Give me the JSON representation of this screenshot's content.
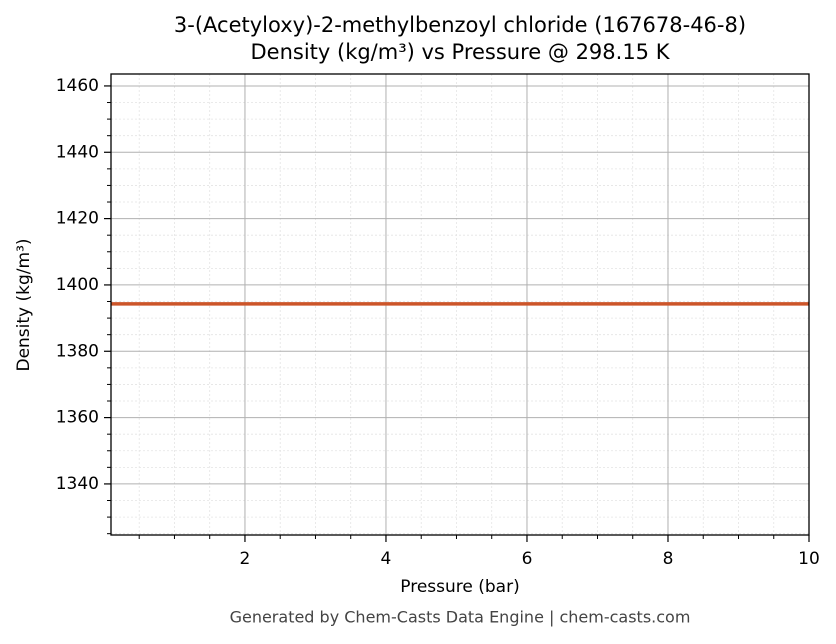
{
  "chart_data": {
    "type": "line",
    "title": "3-(Acetyloxy)-2-methylbenzoyl chloride (167678-46-8)",
    "subtitle": "Density (kg/m³) vs Pressure @ 298.15 K",
    "x_label": "Pressure (bar)",
    "y_label": "Density (kg/m³)",
    "footer": "Generated by Chem-Casts Data Engine | chem-casts.com",
    "x": [
      0.1,
      2,
      4,
      6,
      8,
      10
    ],
    "series": [
      {
        "name": "Density",
        "color": "#cc5529",
        "values": [
          1394.3,
          1394.3,
          1394.3,
          1394.3,
          1394.3,
          1394.3
        ]
      }
    ],
    "xlim": [
      0.1,
      10
    ],
    "ylim": [
      1324.6,
      1463.6
    ],
    "xticks": [
      2,
      4,
      6,
      8,
      10
    ],
    "yticks": [
      1340,
      1360,
      1380,
      1400,
      1420,
      1440,
      1460
    ],
    "xminorticks": [
      0.5,
      1,
      1.5,
      2.5,
      3,
      3.5,
      4.5,
      5,
      5.5,
      6.5,
      7,
      7.5,
      8.5,
      9,
      9.5
    ],
    "yminorticks": [
      1325,
      1330,
      1335,
      1345,
      1350,
      1355,
      1365,
      1370,
      1375,
      1385,
      1390,
      1395,
      1405,
      1410,
      1415,
      1425,
      1430,
      1435,
      1445,
      1450,
      1455
    ],
    "grid": true,
    "minor_grid": true,
    "legend": false
  }
}
